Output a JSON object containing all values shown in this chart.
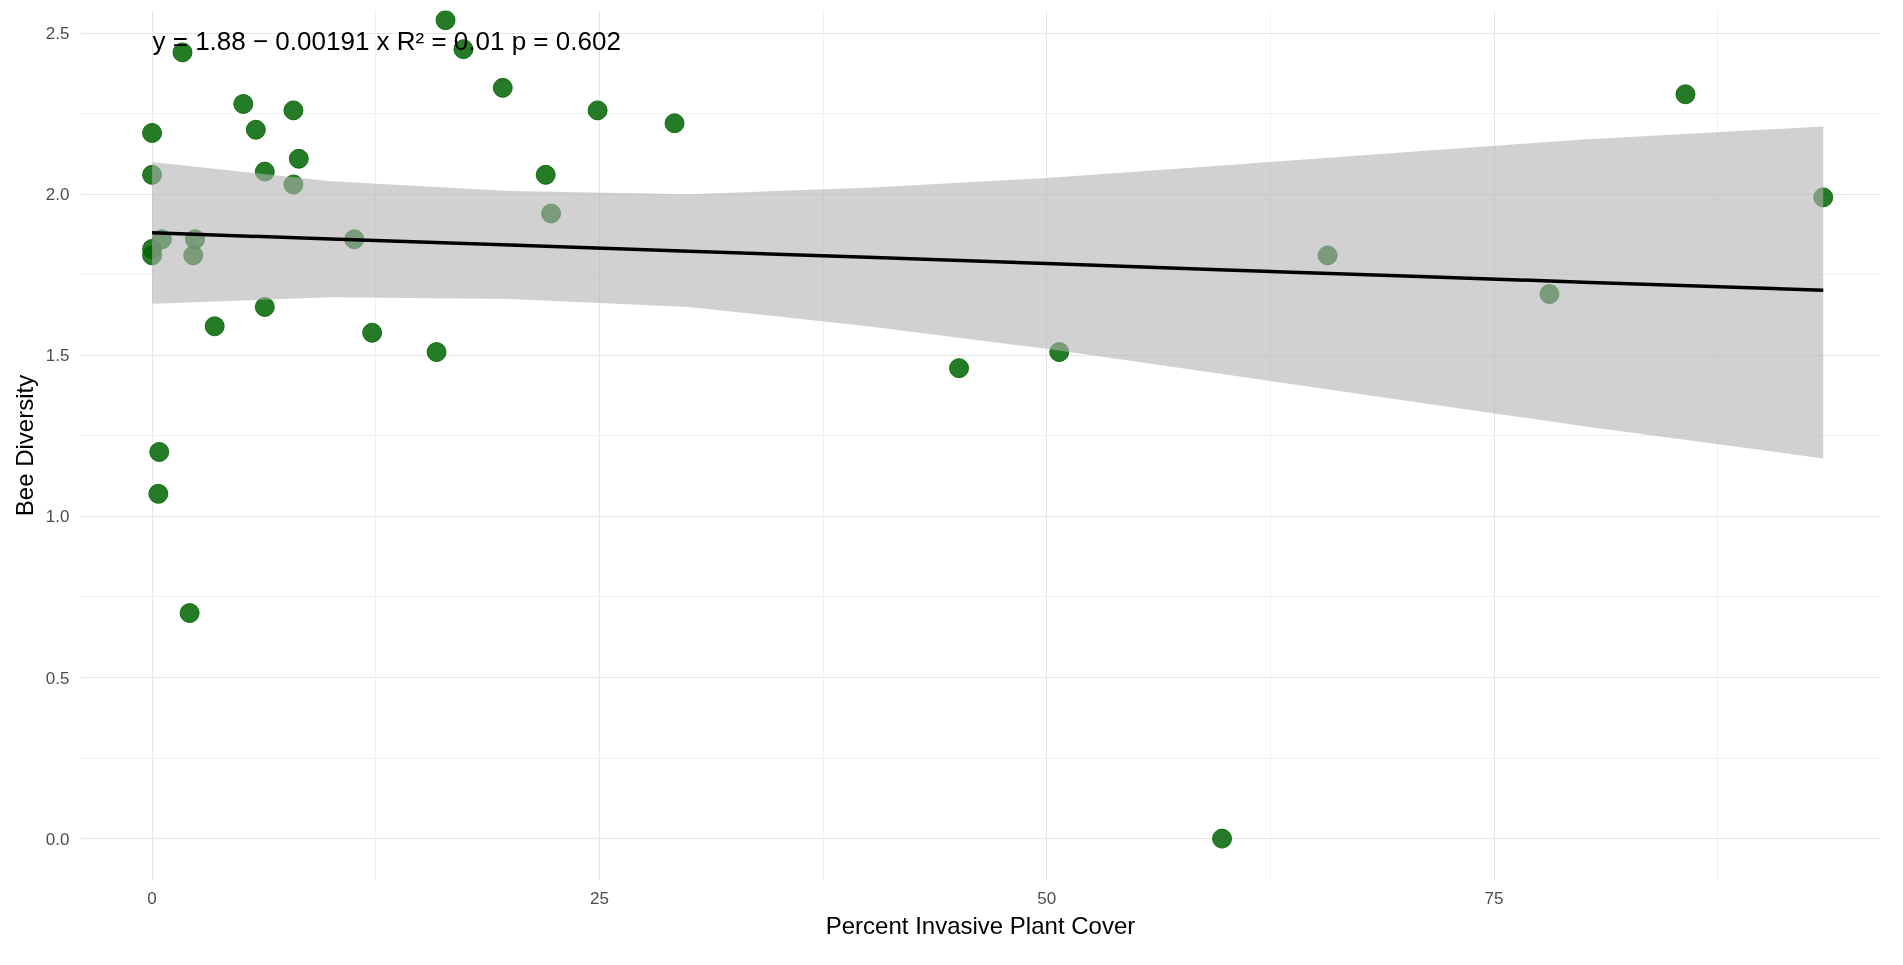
{
  "chart_data": {
    "type": "scatter",
    "xlabel": "Percent Invasive Plant Cover",
    "ylabel": "Bee Diversity",
    "annotations": [
      "y = 1.88 − 0.00191 x   R² = 0.01   p = 0.602"
    ],
    "series": [
      {
        "color": "#006400",
        "marker": "circle",
        "x": [
          0,
          0,
          0,
          0,
          0.55,
          0.4,
          0.35,
          1.7,
          2.1,
          2.4,
          2.3,
          3.5,
          5.1,
          5.8,
          6.3,
          6.3,
          7.9,
          7.9,
          8.2,
          11.3,
          12.3,
          15.9,
          16.4,
          17.4,
          19.6,
          22.0,
          22.3,
          24.9,
          29.2,
          45.1,
          50.7,
          59.8,
          65.7,
          78.1,
          85.7,
          93.4
        ],
        "values": [
          2.19,
          2.06,
          1.83,
          1.81,
          1.86,
          1.2,
          1.07,
          2.44,
          0.7,
          1.86,
          1.81,
          1.59,
          2.28,
          2.2,
          2.07,
          1.65,
          2.26,
          2.03,
          2.11,
          1.86,
          1.57,
          1.51,
          2.54,
          2.45,
          2.33,
          2.06,
          1.94,
          2.26,
          2.22,
          1.46,
          1.51,
          0.0,
          1.81,
          1.69,
          2.31,
          1.99
        ]
      },
      {
        "type": "line",
        "color": "#000000",
        "line_style": "solid",
        "x": [
          0,
          10,
          20,
          30,
          40,
          50,
          60,
          70,
          80,
          93.4
        ],
        "values": [
          1.88,
          1.861,
          1.842,
          1.823,
          1.804,
          1.785,
          1.765,
          1.746,
          1.727,
          1.702
        ],
        "lower": [
          1.66,
          1.68,
          1.675,
          1.65,
          1.59,
          1.52,
          1.44,
          1.36,
          1.28,
          1.18
        ],
        "upper": [
          2.1,
          2.04,
          2.01,
          2.0,
          2.02,
          2.05,
          2.09,
          2.13,
          2.17,
          2.21
        ]
      }
    ],
    "xlim": [
      -4.0,
      96.6
    ],
    "ylim": [
      -0.13,
      2.57
    ],
    "xticks": [
      0,
      25,
      50,
      75
    ],
    "yticks": [
      {
        "value": 0,
        "label": "0.0"
      },
      {
        "value": 0.5,
        "label": "0.5"
      },
      {
        "value": 1,
        "label": "1.0"
      },
      {
        "value": 1.5,
        "label": "1.5"
      },
      {
        "value": 2,
        "label": "2.0"
      },
      {
        "value": 2.5,
        "label": "2.5"
      }
    ],
    "grid": true
  }
}
